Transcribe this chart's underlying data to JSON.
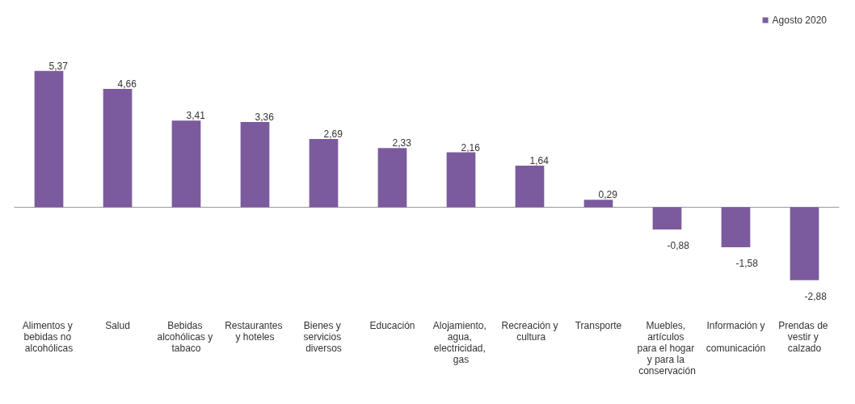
{
  "chart_data": {
    "type": "bar",
    "categories": [
      "Alimentos y bebidas no alcohólicas",
      "Salud",
      "Bebidas alcohólicas y tabaco",
      "Restaurantes y hoteles",
      "Bienes y servicios diversos",
      "Educación",
      "Alojamiento, agua, electricidad, gas",
      "Recreación y cultura",
      "Transporte",
      "Muebles, artículos para el hogar y para la conservación",
      "Información y comunicación",
      "Prendas de vestir y calzado"
    ],
    "series": [
      {
        "name": "Agosto 2020",
        "color": "#7b5b9e",
        "values": [
          5.37,
          4.66,
          3.41,
          3.36,
          2.69,
          2.33,
          2.16,
          1.64,
          0.29,
          -0.88,
          -1.58,
          -2.88
        ],
        "value_labels": [
          "5,37",
          "4,66",
          "3,41",
          "3,36",
          "2,69",
          "2,33",
          "2,16",
          "1,64",
          "0,29",
          "-0,88",
          "-1,58",
          "-2,88"
        ]
      }
    ],
    "legend": "top right",
    "grid": false
  }
}
